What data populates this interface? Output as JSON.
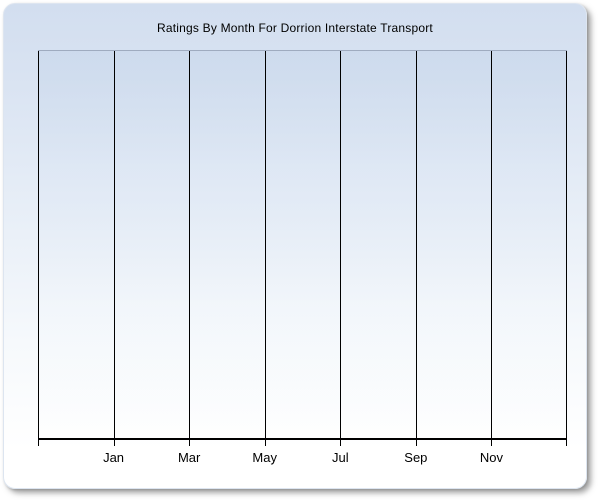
{
  "page": {
    "background": "#ffffff"
  },
  "chart_data": {
    "type": "line",
    "title": "Ratings By Month For Dorrion Interstate Transport",
    "x_tick_labels": [
      "Jan",
      "Mar",
      "May",
      "Jul",
      "Sep",
      "Nov"
    ],
    "x_gridline_count": 8,
    "series": [],
    "xlabel": "",
    "ylabel": "",
    "grid": "vertical",
    "legend": "none",
    "colors": {
      "gridline": "#000000",
      "axis": "#000000",
      "plot_top_border": "#9fabbf",
      "panel_gradient_top": "#d2deef",
      "panel_gradient_bottom": "#ffffff"
    }
  }
}
